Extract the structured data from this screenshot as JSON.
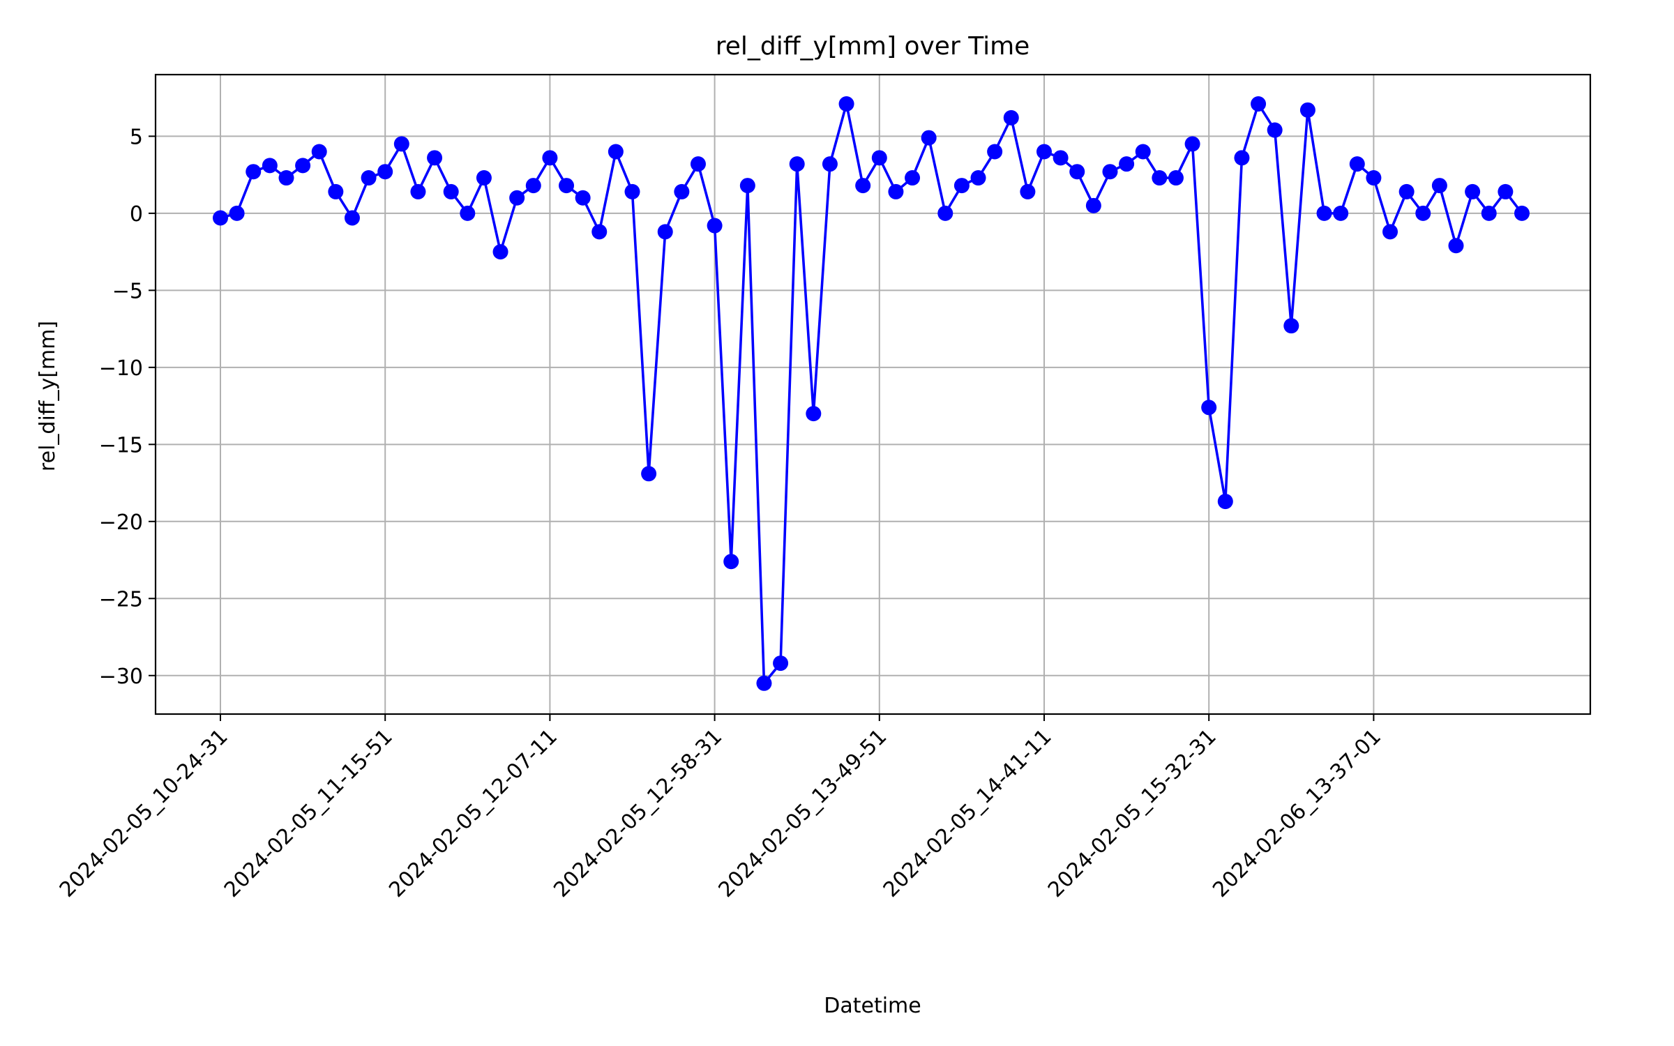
{
  "chart_data": {
    "type": "line",
    "title": "rel_diff_y[mm] over Time",
    "xlabel": "Datetime",
    "ylabel": "rel_diff_y[mm]",
    "ylim": [
      -32.5,
      9
    ],
    "y_ticks": [
      5,
      0,
      -5,
      -10,
      -15,
      -20,
      -25,
      -30
    ],
    "y_tick_labels": [
      "5",
      "0",
      "−5",
      "−10",
      "−15",
      "−20",
      "−25",
      "−30"
    ],
    "x_tick_labels": [
      "2024-02-05_10-24-31",
      "2024-02-05_11-15-51",
      "2024-02-05_12-07-11",
      "2024-02-05_12-58-31",
      "2024-02-05_13-49-51",
      "2024-02-05_14-41-11",
      "2024-02-05_15-32-31",
      "2024-02-06_13-37-01"
    ],
    "x_tick_every": 10,
    "grid": true,
    "legend": "none",
    "series": [
      {
        "color": "#0000ff",
        "marker": "circle",
        "values": [
          -0.3,
          0.0,
          2.7,
          3.1,
          2.3,
          3.1,
          4.0,
          1.4,
          -0.3,
          2.3,
          2.7,
          4.5,
          1.4,
          3.6,
          1.4,
          0.0,
          2.3,
          -2.5,
          1.0,
          1.8,
          3.6,
          1.8,
          1.0,
          -1.2,
          4.0,
          1.4,
          -16.9,
          -1.2,
          1.4,
          3.2,
          -0.8,
          -22.6,
          1.8,
          -30.5,
          -29.2,
          3.2,
          -13.0,
          3.2,
          7.1,
          1.8,
          3.6,
          1.4,
          2.3,
          4.9,
          0.0,
          1.8,
          2.3,
          4.0,
          6.2,
          1.4,
          4.0,
          3.6,
          2.7,
          0.5,
          2.7,
          3.2,
          4.0,
          2.3,
          2.3,
          4.5,
          -12.6,
          -18.7,
          3.6,
          7.1,
          5.4,
          -7.3,
          6.7,
          0.0,
          0.0,
          3.2,
          2.3,
          -1.2,
          1.4,
          0.0,
          1.8,
          -2.1,
          1.4,
          0.0,
          1.4,
          0.0
        ]
      }
    ]
  }
}
